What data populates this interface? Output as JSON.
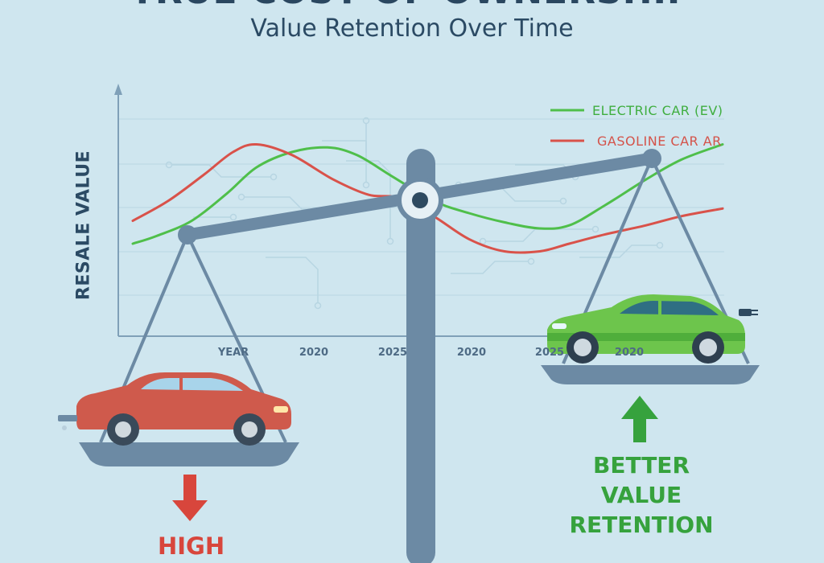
{
  "header": {
    "title": "TRUE COST OF OWNERSHIP",
    "subtitle": "Value Retention Over Time"
  },
  "chart_data": {
    "type": "line",
    "title": "TRUE COST OF OWNERSHIP",
    "subtitle": "Value Retention Over Time",
    "ylabel": "RESALE VALUE",
    "x_tick_labels": [
      "YEAR",
      "2020",
      "2025",
      "2020",
      "2025",
      "2020"
    ],
    "grid": true,
    "legend_position": "top-right",
    "series": [
      {
        "name": "ELECTRIC CAR (EV)",
        "color": "#4fbf4a",
        "x": [
          0.0,
          0.04,
          0.1,
          0.16,
          0.21,
          0.27,
          0.33,
          0.38,
          0.44,
          0.51,
          0.57,
          0.63,
          0.69,
          0.74,
          0.8,
          0.87,
          0.93,
          1.0
        ],
        "values": [
          0.3,
          0.35,
          0.45,
          0.63,
          0.8,
          0.9,
          0.93,
          0.88,
          0.74,
          0.58,
          0.5,
          0.44,
          0.4,
          0.42,
          0.55,
          0.72,
          0.85,
          0.95
        ]
      },
      {
        "name": "GASOLINE CAR AR",
        "color": "#d9524a",
        "x": [
          0.0,
          0.06,
          0.12,
          0.17,
          0.21,
          0.27,
          0.34,
          0.4,
          0.45,
          0.51,
          0.57,
          0.63,
          0.69,
          0.74,
          0.8,
          0.87,
          0.93,
          1.0
        ],
        "values": [
          0.45,
          0.58,
          0.75,
          0.9,
          0.95,
          0.88,
          0.72,
          0.62,
          0.6,
          0.48,
          0.33,
          0.25,
          0.25,
          0.3,
          0.36,
          0.42,
          0.48,
          0.53
        ]
      }
    ]
  },
  "callouts": {
    "gas": "HIGH",
    "ev": "BETTER VALUE RETENTION"
  },
  "colors": {
    "background": "#cfe6ef",
    "scale": "#6c8aa4",
    "ev_green": "#4fbf4a",
    "gas_red": "#d9524a",
    "text_dark": "#2b4a64"
  },
  "icons": {
    "left_pan": "gasoline-car-icon",
    "right_pan": "electric-car-icon",
    "down_arrow": "arrow-down-icon",
    "up_arrow": "arrow-up-icon"
  }
}
